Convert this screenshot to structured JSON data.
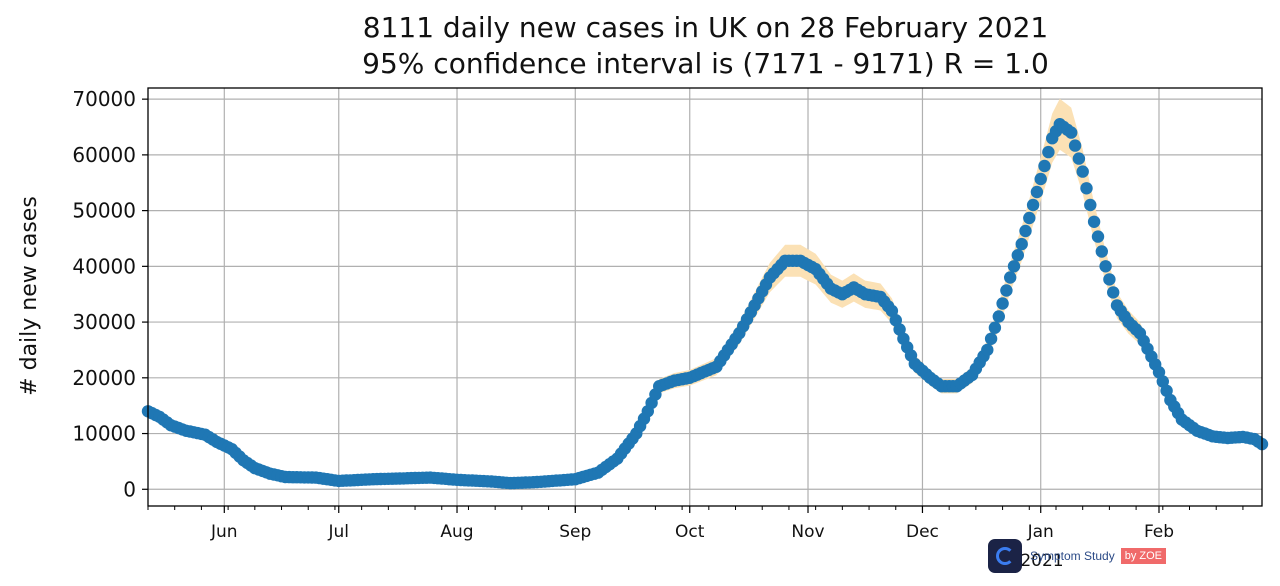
{
  "header": {
    "title_line1": "8111 daily new cases in UK on 28 February 2021",
    "title_line2": "95% confidence interval is (7171 - 9171) R = 1.0"
  },
  "logo": {
    "text": "Symptom Study",
    "badge": "by ZOE"
  },
  "chart_data": {
    "type": "scatter",
    "title": "8111 daily new cases in UK on 28 February 2021",
    "subtitle": "95% confidence interval is (7171 - 9171) R = 1.0",
    "ylabel": "# daily new cases",
    "xlabel": "",
    "year_label": "2021",
    "ylim": [
      -3000,
      72000
    ],
    "yticks": [
      0,
      10000,
      20000,
      30000,
      40000,
      50000,
      60000,
      70000
    ],
    "xrange": [
      "2020-05-12",
      "2021-02-28"
    ],
    "xticks": [
      {
        "date": "2020-06-01",
        "label": "Jun"
      },
      {
        "date": "2020-07-01",
        "label": "Jul"
      },
      {
        "date": "2020-08-01",
        "label": "Aug"
      },
      {
        "date": "2020-09-01",
        "label": "Sep"
      },
      {
        "date": "2020-10-01",
        "label": "Oct"
      },
      {
        "date": "2020-11-01",
        "label": "Nov"
      },
      {
        "date": "2020-12-01",
        "label": "Dec"
      },
      {
        "date": "2021-01-01",
        "label": "Jan"
      },
      {
        "date": "2021-02-01",
        "label": "Feb"
      }
    ],
    "grid": true,
    "colors": {
      "points": "#1f77b4",
      "ci_band": "#fbe1b5"
    },
    "series": [
      {
        "values": [
          [
            "2020-05-12",
            14000
          ],
          [
            "2020-05-15",
            13000
          ],
          [
            "2020-05-18",
            11500
          ],
          [
            "2020-05-22",
            10500
          ],
          [
            "2020-05-27",
            9800
          ],
          [
            "2020-05-30",
            8500
          ],
          [
            "2020-06-03",
            7200
          ],
          [
            "2020-06-06",
            5200
          ],
          [
            "2020-06-09",
            3800
          ],
          [
            "2020-06-13",
            2800
          ],
          [
            "2020-06-17",
            2200
          ],
          [
            "2020-06-25",
            2100
          ],
          [
            "2020-07-01",
            1500
          ],
          [
            "2020-07-10",
            1800
          ],
          [
            "2020-07-20",
            2000
          ],
          [
            "2020-07-25",
            2100
          ],
          [
            "2020-08-01",
            1700
          ],
          [
            "2020-08-10",
            1400
          ],
          [
            "2020-08-15",
            1100
          ],
          [
            "2020-08-22",
            1300
          ],
          [
            "2020-09-01",
            1800
          ],
          [
            "2020-09-07",
            3000
          ],
          [
            "2020-09-12",
            5500
          ],
          [
            "2020-09-17",
            10000
          ],
          [
            "2020-09-20",
            14000
          ],
          [
            "2020-09-23",
            18500
          ],
          [
            "2020-09-27",
            19500
          ],
          [
            "2020-10-01",
            20000
          ],
          [
            "2020-10-08",
            22000
          ],
          [
            "2020-10-14",
            28000
          ],
          [
            "2020-10-18",
            33000
          ],
          [
            "2020-10-22",
            38000
          ],
          [
            "2020-10-26",
            41000
          ],
          [
            "2020-10-30",
            41000
          ],
          [
            "2020-11-03",
            39500
          ],
          [
            "2020-11-07",
            36000
          ],
          [
            "2020-11-10",
            35000
          ],
          [
            "2020-11-13",
            36200
          ],
          [
            "2020-11-16",
            35000
          ],
          [
            "2020-11-20",
            34500
          ],
          [
            "2020-11-23",
            32000
          ],
          [
            "2020-11-26",
            27000
          ],
          [
            "2020-11-29",
            22500
          ],
          [
            "2020-12-03",
            20000
          ],
          [
            "2020-12-06",
            18500
          ],
          [
            "2020-12-10",
            18500
          ],
          [
            "2020-12-14",
            20500
          ],
          [
            "2020-12-18",
            25000
          ],
          [
            "2020-12-21",
            31000
          ],
          [
            "2020-12-24",
            38000
          ],
          [
            "2020-12-27",
            44000
          ],
          [
            "2020-12-30",
            51000
          ],
          [
            "2021-01-02",
            58000
          ],
          [
            "2021-01-04",
            63000
          ],
          [
            "2021-01-06",
            65500
          ],
          [
            "2021-01-09",
            64000
          ],
          [
            "2021-01-12",
            57000
          ],
          [
            "2021-01-15",
            48000
          ],
          [
            "2021-01-18",
            40000
          ],
          [
            "2021-01-21",
            33000
          ],
          [
            "2021-01-24",
            30000
          ],
          [
            "2021-01-27",
            28000
          ],
          [
            "2021-02-01",
            21000
          ],
          [
            "2021-02-04",
            16000
          ],
          [
            "2021-02-07",
            12500
          ],
          [
            "2021-02-11",
            10500
          ],
          [
            "2021-02-15",
            9500
          ],
          [
            "2021-02-19",
            9200
          ],
          [
            "2021-02-23",
            9400
          ],
          [
            "2021-02-26",
            9000
          ],
          [
            "2021-02-28",
            8111
          ]
        ]
      }
    ]
  }
}
